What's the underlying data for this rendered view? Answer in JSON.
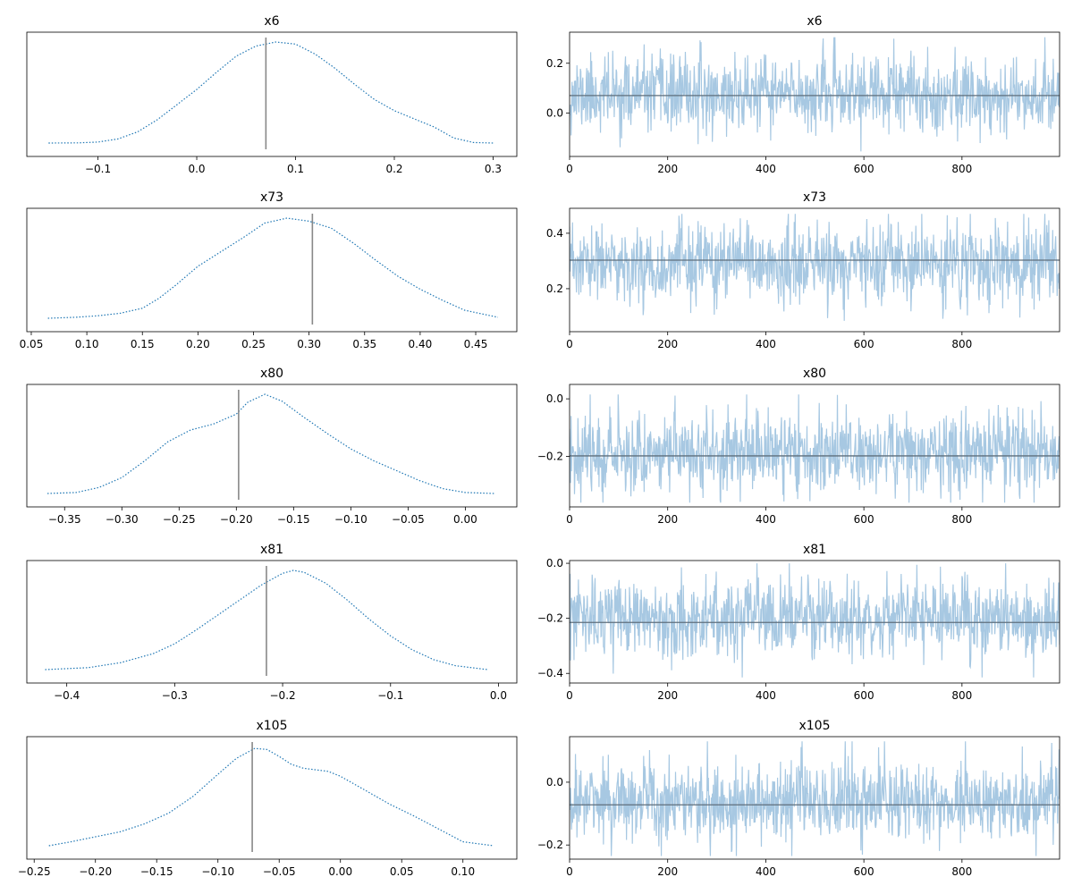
{
  "chart_data": [
    {
      "type": "line",
      "kind": "density",
      "title": "x6",
      "xlim": [
        -0.172,
        0.324
      ],
      "xticks": [
        -0.1,
        0.0,
        0.1,
        0.2,
        0.3
      ],
      "xtick_labels": [
        "−0.1",
        "0.0",
        "0.1",
        "0.2",
        "0.3"
      ],
      "yticks": [],
      "ytick_labels": [],
      "reference_value": 0.07,
      "x": [
        -0.15,
        -0.12,
        -0.1,
        -0.08,
        -0.06,
        -0.04,
        -0.02,
        0.0,
        0.02,
        0.04,
        0.06,
        0.08,
        0.1,
        0.12,
        0.14,
        0.16,
        0.18,
        0.2,
        0.22,
        0.24,
        0.26,
        0.28,
        0.3
      ],
      "y": [
        0.0,
        0.002,
        0.01,
        0.04,
        0.11,
        0.23,
        0.38,
        0.53,
        0.7,
        0.86,
        0.96,
        1.0,
        0.98,
        0.88,
        0.74,
        0.58,
        0.43,
        0.32,
        0.24,
        0.16,
        0.05,
        0.005,
        0.0
      ],
      "style": "dotted",
      "color": "#1f77b4"
    },
    {
      "type": "line",
      "kind": "trace",
      "title": "x6",
      "xlim": [
        0,
        999
      ],
      "ylim": [
        -0.175,
        0.325
      ],
      "xticks": [
        0,
        200,
        400,
        600,
        800
      ],
      "xtick_labels": [
        "0",
        "200",
        "400",
        "600",
        "800"
      ],
      "yticks": [
        0.0,
        0.2
      ],
      "ytick_labels": [
        "0.0",
        "0.2"
      ],
      "reference_value": 0.07,
      "trace_mean": 0.075,
      "trace_sd": 0.075,
      "trace_min": -0.155,
      "trace_max": 0.305,
      "draws": 1000,
      "seed": 11,
      "color": "#1f77b4"
    },
    {
      "type": "line",
      "kind": "density",
      "title": "x73",
      "xlim": [
        0.046,
        0.487
      ],
      "xticks": [
        0.05,
        0.1,
        0.15,
        0.2,
        0.25,
        0.3,
        0.35,
        0.4,
        0.45
      ],
      "xtick_labels": [
        "0.05",
        "0.10",
        "0.15",
        "0.20",
        "0.25",
        "0.30",
        "0.35",
        "0.40",
        "0.45"
      ],
      "yticks": [],
      "ytick_labels": [],
      "reference_value": 0.303,
      "x": [
        0.065,
        0.09,
        0.11,
        0.13,
        0.15,
        0.165,
        0.18,
        0.2,
        0.22,
        0.24,
        0.26,
        0.28,
        0.3,
        0.32,
        0.34,
        0.36,
        0.38,
        0.4,
        0.42,
        0.44,
        0.47
      ],
      "y": [
        0.0,
        0.01,
        0.025,
        0.05,
        0.1,
        0.2,
        0.33,
        0.52,
        0.66,
        0.8,
        0.95,
        1.0,
        0.97,
        0.9,
        0.75,
        0.58,
        0.42,
        0.29,
        0.18,
        0.08,
        0.01
      ],
      "style": "dotted",
      "color": "#1f77b4"
    },
    {
      "type": "line",
      "kind": "trace",
      "title": "x73",
      "xlim": [
        0,
        999
      ],
      "ylim": [
        0.045,
        0.49
      ],
      "xticks": [
        0,
        200,
        400,
        600,
        800
      ],
      "xtick_labels": [
        "0",
        "200",
        "400",
        "600",
        "800"
      ],
      "yticks": [
        0.2,
        0.4
      ],
      "ytick_labels": [
        "0.2",
        "0.4"
      ],
      "reference_value": 0.303,
      "trace_mean": 0.285,
      "trace_sd": 0.07,
      "trace_min": 0.065,
      "trace_max": 0.47,
      "draws": 1000,
      "seed": 23,
      "color": "#1f77b4"
    },
    {
      "type": "line",
      "kind": "density",
      "title": "x80",
      "xlim": [
        -0.383,
        0.045
      ],
      "xticks": [
        -0.35,
        -0.3,
        -0.25,
        -0.2,
        -0.15,
        -0.1,
        -0.05,
        0.0
      ],
      "xtick_labels": [
        "−0.35",
        "−0.30",
        "−0.25",
        "−0.20",
        "−0.15",
        "−0.10",
        "−0.05",
        "0.00"
      ],
      "yticks": [],
      "ytick_labels": [],
      "reference_value": -0.198,
      "x": [
        -0.365,
        -0.34,
        -0.32,
        -0.3,
        -0.28,
        -0.26,
        -0.24,
        -0.22,
        -0.2,
        -0.19,
        -0.175,
        -0.16,
        -0.14,
        -0.12,
        -0.1,
        -0.08,
        -0.06,
        -0.04,
        -0.02,
        0.0,
        0.025
      ],
      "y": [
        0.0,
        0.01,
        0.06,
        0.16,
        0.33,
        0.52,
        0.64,
        0.7,
        0.8,
        0.92,
        1.0,
        0.93,
        0.76,
        0.6,
        0.45,
        0.33,
        0.23,
        0.13,
        0.05,
        0.01,
        0.0
      ],
      "style": "dotted",
      "color": "#1f77b4"
    },
    {
      "type": "line",
      "kind": "trace",
      "title": "x80",
      "xlim": [
        0,
        999
      ],
      "ylim": [
        -0.375,
        0.05
      ],
      "xticks": [
        0,
        200,
        400,
        600,
        800
      ],
      "xtick_labels": [
        "0",
        "200",
        "400",
        "600",
        "800"
      ],
      "yticks": [
        -0.2,
        0.0
      ],
      "ytick_labels": [
        "−0.2",
        "0.0"
      ],
      "reference_value": -0.198,
      "trace_mean": -0.185,
      "trace_sd": 0.07,
      "trace_min": -0.36,
      "trace_max": 0.015,
      "draws": 1000,
      "seed": 37,
      "color": "#1f77b4"
    },
    {
      "type": "line",
      "kind": "density",
      "title": "x81",
      "xlim": [
        -0.437,
        0.017
      ],
      "xticks": [
        -0.4,
        -0.3,
        -0.2,
        -0.1,
        0.0
      ],
      "xtick_labels": [
        "−0.4",
        "−0.3",
        "−0.2",
        "−0.1",
        "0.0"
      ],
      "yticks": [],
      "ytick_labels": [],
      "reference_value": -0.215,
      "x": [
        -0.42,
        -0.38,
        -0.35,
        -0.32,
        -0.3,
        -0.28,
        -0.26,
        -0.24,
        -0.22,
        -0.2,
        -0.19,
        -0.18,
        -0.16,
        -0.14,
        -0.12,
        -0.1,
        -0.08,
        -0.06,
        -0.04,
        -0.01
      ],
      "y": [
        0.0,
        0.02,
        0.07,
        0.16,
        0.26,
        0.4,
        0.55,
        0.7,
        0.85,
        0.97,
        1.0,
        0.98,
        0.87,
        0.7,
        0.51,
        0.34,
        0.2,
        0.1,
        0.04,
        0.0
      ],
      "style": "dotted",
      "color": "#1f77b4"
    },
    {
      "type": "line",
      "kind": "trace",
      "title": "x81",
      "xlim": [
        0,
        999
      ],
      "ylim": [
        -0.435,
        0.01
      ],
      "xticks": [
        0,
        200,
        400,
        600,
        800
      ],
      "xtick_labels": [
        "0",
        "200",
        "400",
        "600",
        "800"
      ],
      "yticks": [
        -0.4,
        -0.2,
        0.0
      ],
      "ytick_labels": [
        "−0.4",
        "−0.2",
        "0.0"
      ],
      "reference_value": -0.215,
      "trace_mean": -0.2,
      "trace_sd": 0.07,
      "trace_min": -0.415,
      "trace_max": 0.0,
      "draws": 1000,
      "seed": 53,
      "color": "#1f77b4"
    },
    {
      "type": "line",
      "kind": "density",
      "title": "x105",
      "xlim": [
        -0.256,
        0.144
      ],
      "xticks": [
        -0.25,
        -0.2,
        -0.15,
        -0.1,
        -0.05,
        0.0,
        0.05,
        0.1
      ],
      "xtick_labels": [
        "−0.25",
        "−0.20",
        "−0.15",
        "−0.10",
        "−0.05",
        "0.00",
        "0.05",
        "0.10"
      ],
      "yticks": [],
      "ytick_labels": [],
      "reference_value": -0.072,
      "x": [
        -0.238,
        -0.22,
        -0.2,
        -0.18,
        -0.16,
        -0.14,
        -0.12,
        -0.1,
        -0.085,
        -0.07,
        -0.06,
        -0.05,
        -0.04,
        -0.03,
        -0.01,
        0.0,
        0.02,
        0.04,
        0.06,
        0.08,
        0.1,
        0.125
      ],
      "y": [
        0.0,
        0.04,
        0.09,
        0.14,
        0.22,
        0.33,
        0.5,
        0.72,
        0.88,
        0.98,
        0.97,
        0.9,
        0.82,
        0.78,
        0.75,
        0.7,
        0.56,
        0.42,
        0.3,
        0.17,
        0.04,
        0.0
      ],
      "style": "dotted",
      "color": "#1f77b4"
    },
    {
      "type": "line",
      "kind": "trace",
      "title": "x105",
      "xlim": [
        0,
        999
      ],
      "ylim": [
        -0.245,
        0.145
      ],
      "xticks": [
        0,
        200,
        400,
        600,
        800
      ],
      "xtick_labels": [
        "0",
        "200",
        "400",
        "600",
        "800"
      ],
      "yticks": [
        -0.2,
        0.0
      ],
      "ytick_labels": [
        "−0.2",
        "0.0"
      ],
      "reference_value": -0.072,
      "trace_mean": -0.06,
      "trace_sd": 0.065,
      "trace_min": -0.235,
      "trace_max": 0.13,
      "draws": 1000,
      "seed": 71,
      "color": "#1f77b4"
    }
  ]
}
